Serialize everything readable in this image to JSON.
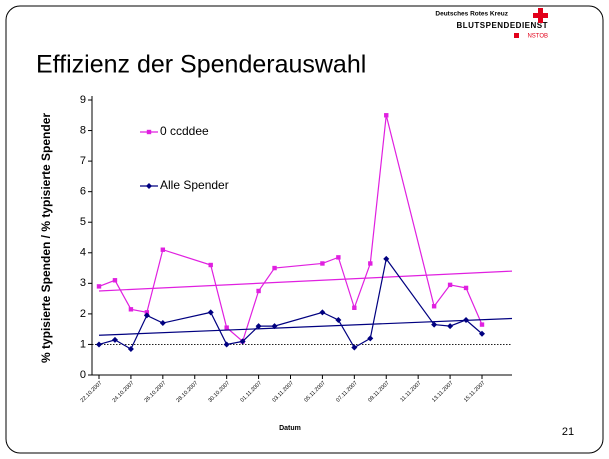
{
  "header": {
    "title": "Effizienz der Spenderauswahl",
    "logo_line1": "Deutsches Rotes Kreuz",
    "logo_line2": "BLUTSPENDEDIENST",
    "logo_line3": "NSTOB"
  },
  "page_number": "21",
  "chart_data": {
    "type": "line",
    "ylabel": "% typisierte Spenden / % typisierte Spender",
    "xlabel": "Datum",
    "x": [
      "22.10.2007",
      "23.10.2007",
      "24.10.2007",
      "25.10.2007",
      "26.10.2007",
      "29.10.2007",
      "30.10.2007",
      "31.10.2007",
      "01.11.2007",
      "02.11.2007",
      "05.11.2007",
      "06.11.2007",
      "07.11.2007",
      "08.11.2007",
      "09.11.2007",
      "12.11.2007",
      "13.11.2007",
      "14.11.2007",
      "15.11.2007"
    ],
    "xlim": [
      "22.10.2007",
      "15.11.2007"
    ],
    "xticks": [
      "22.10.2007",
      "24.10.2007",
      "26.10.2007",
      "28.10.2007",
      "30.10.2007",
      "01.11.2007",
      "03.11.2007",
      "05.11.2007",
      "07.11.2007",
      "09.11.2007",
      "11.11.2007",
      "13.11.2007",
      "15.11.2007"
    ],
    "ylim": [
      0,
      9
    ],
    "yticks": [
      0,
      1,
      2,
      3,
      4,
      5,
      6,
      7,
      8,
      9
    ],
    "reference_line": 1,
    "series": [
      {
        "name": "0 ccddee",
        "color": "#e020e0",
        "marker": "square",
        "values": [
          2.9,
          3.1,
          2.15,
          2.05,
          4.1,
          3.6,
          1.55,
          1.1,
          2.75,
          3.5,
          3.65,
          3.85,
          2.2,
          3.65,
          8.5,
          2.25,
          2.95,
          2.85,
          1.65
        ],
        "trend": [
          2.75,
          3.4
        ]
      },
      {
        "name": "Alle Spender",
        "color": "#000080",
        "marker": "diamond",
        "values": [
          1.0,
          1.15,
          0.85,
          1.95,
          1.7,
          2.05,
          1.0,
          1.1,
          1.6,
          1.6,
          2.05,
          1.8,
          0.9,
          1.2,
          3.8,
          1.65,
          1.6,
          1.8,
          1.35
        ],
        "trend": [
          1.3,
          1.85
        ]
      }
    ]
  }
}
